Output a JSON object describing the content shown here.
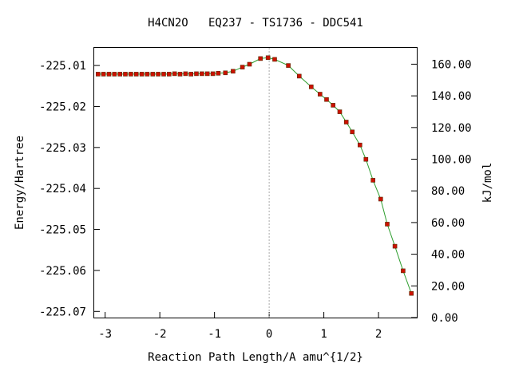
{
  "chart_data": {
    "type": "line",
    "title": "H4CN2O   EQ237 - TS1736 - DDC541",
    "xlabel": "Reaction Path Length/A amu^{1/2}",
    "ylabel": "Energy/Hartree",
    "y2label": "kJ/mol",
    "xlim": [
      -3.2,
      2.7
    ],
    "ylim": [
      -225.0715,
      -225.0057
    ],
    "y2lim": [
      0,
      170.3
    ],
    "x_ticks": [
      -3,
      -2,
      -1,
      0,
      1,
      2
    ],
    "x_tick_labels": [
      "-3",
      "-2",
      "-1",
      "0",
      "1",
      "2"
    ],
    "y_ticks": [
      -225.01,
      -225.02,
      -225.03,
      -225.04,
      -225.05,
      -225.06,
      -225.07
    ],
    "y_tick_labels": [
      "-225.01",
      "-225.02",
      "-225.03",
      "-225.04",
      "-225.05",
      "-225.06",
      "-225.07"
    ],
    "y2_ticks": [
      0,
      20,
      40,
      60,
      80,
      100,
      120,
      140,
      160
    ],
    "y2_tick_labels": [
      "0.00",
      "20.00",
      "40.00",
      "60.00",
      "80.00",
      "100.00",
      "120.00",
      "140.00",
      "160.00"
    ],
    "ts_marker_x": 0,
    "series": [
      {
        "line_color": "#2e9e2e",
        "marker_color": "#cc1100",
        "x": [
          -3.13,
          -3.03,
          -2.93,
          -2.83,
          -2.73,
          -2.63,
          -2.53,
          -2.43,
          -2.33,
          -2.23,
          -2.13,
          -2.03,
          -1.93,
          -1.83,
          -1.73,
          -1.63,
          -1.53,
          -1.43,
          -1.33,
          -1.23,
          -1.13,
          -1.03,
          -0.93,
          -0.8,
          -0.66,
          -0.49,
          -0.36,
          -0.16,
          -0.02,
          0.1,
          0.35,
          0.55,
          0.77,
          0.93,
          1.05,
          1.17,
          1.29,
          1.41,
          1.52,
          1.66,
          1.77,
          1.9,
          2.04,
          2.16,
          2.3,
          2.45,
          2.6
        ],
        "y": [
          -225.0121,
          -225.0121,
          -225.0121,
          -225.0121,
          -225.0121,
          -225.0121,
          -225.0121,
          -225.0121,
          -225.0121,
          -225.0121,
          -225.0121,
          -225.0121,
          -225.0121,
          -225.0121,
          -225.012,
          -225.0121,
          -225.012,
          -225.0121,
          -225.012,
          -225.012,
          -225.012,
          -225.012,
          -225.0119,
          -225.0118,
          -225.0114,
          -225.0104,
          -225.0097,
          -225.0083,
          -225.0081,
          -225.0085,
          -225.01,
          -225.0126,
          -225.0152,
          -225.017,
          -225.0183,
          -225.0197,
          -225.0213,
          -225.0238,
          -225.0262,
          -225.0294,
          -225.0329,
          -225.038,
          -225.0426,
          -225.0487,
          -225.0541,
          -225.0601,
          -225.0656
        ]
      }
    ]
  }
}
